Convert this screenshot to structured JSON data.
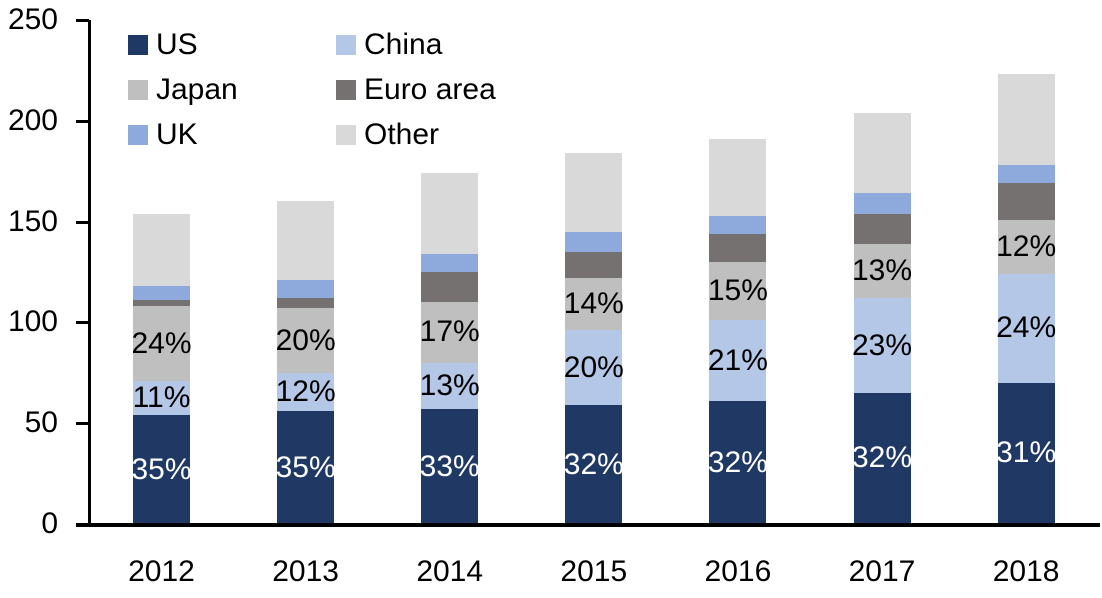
{
  "chart_data": {
    "type": "bar",
    "stacked": true,
    "title": "",
    "xlabel": "",
    "ylabel": "",
    "categories": [
      "2012",
      "2013",
      "2014",
      "2015",
      "2016",
      "2017",
      "2018"
    ],
    "y_axis": {
      "min": 0,
      "max": 250,
      "ticks": [
        0,
        50,
        100,
        150,
        200,
        250
      ]
    },
    "grid": false,
    "legend_position": "top-left",
    "series": [
      {
        "name": "US",
        "color": "#1F3864",
        "values": [
          54,
          56,
          57,
          59,
          61,
          65,
          70
        ],
        "labels": [
          "35%",
          "35%",
          "33%",
          "32%",
          "32%",
          "32%",
          "31%"
        ],
        "label_color": "#FFFFFF"
      },
      {
        "name": "China",
        "color": "#B4C7E7",
        "values": [
          17,
          19,
          23,
          37,
          40,
          47,
          54
        ],
        "labels": [
          "11%",
          "12%",
          "13%",
          "20%",
          "21%",
          "23%",
          "24%"
        ],
        "label_color": "#000000"
      },
      {
        "name": "Japan",
        "color": "#BFBFBF",
        "values": [
          37,
          32,
          30,
          26,
          29,
          27,
          27
        ],
        "labels": [
          "24%",
          "20%",
          "17%",
          "14%",
          "15%",
          "13%",
          "12%"
        ],
        "label_color": "#000000"
      },
      {
        "name": "Euro area",
        "color": "#767171",
        "values": [
          3,
          5,
          15,
          13,
          14,
          15,
          18
        ],
        "labels": null,
        "label_color": null
      },
      {
        "name": "UK",
        "color": "#8EA9DB",
        "values": [
          7,
          9,
          9,
          10,
          9,
          10,
          9
        ],
        "labels": null,
        "label_color": null
      },
      {
        "name": "Other",
        "color": "#D9D9D9",
        "values": [
          36,
          39,
          40,
          39,
          38,
          40,
          45
        ],
        "labels": null,
        "label_color": null
      }
    ],
    "totals": [
      154,
      160,
      174,
      184,
      191,
      204,
      223
    ]
  },
  "legend": {
    "rows": [
      [
        "US",
        "China"
      ],
      [
        "Japan",
        "Euro area"
      ],
      [
        "UK",
        "Other"
      ]
    ]
  }
}
